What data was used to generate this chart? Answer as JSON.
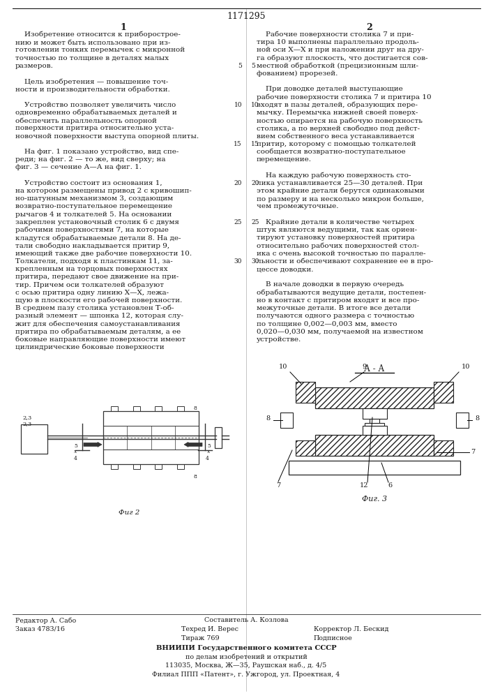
{
  "patent_number": "1171295",
  "col1_header": "1",
  "col2_header": "2",
  "col1_text": [
    "    Изобретение относится к приборострое-",
    "нию и может быть использовано при из-",
    "готовлении тонких перемычек с микронной",
    "точностью по толщине в деталях малых",
    "размеров.",
    "",
    "    Цель изобретения — повышение точ-",
    "ности и производительности обработки.",
    "",
    "    Устройство позволяет увеличить число",
    "одновременно обрабатываемых деталей и",
    "обеспечить параллельность опорной",
    "поверхности притира относительно уста-",
    "новочной поверхности выступа опорной плиты.",
    "",
    "    На фиг. 1 показано устройство, вид спе-",
    "реди; на фиг. 2 — то же, вид сверху; на",
    "фиг. 3 — сечение А—А на фиг. 1.",
    "",
    "    Устройство состоит из основания 1,",
    "на котором размещены привод 2 с кривошип-",
    "но-шатунным механизмом 3, создающим",
    "возвратно-поступательное перемещение",
    "рычагов 4 и толкателей 5. На основании",
    "закреплен установочный столик 6 с двумя",
    "рабочими поверхностями 7, на которые",
    "кладутся обрабатываемые детали 8. На де-",
    "тали свободно накладывается притир 9,",
    "имеющий также две рабочие поверхности 10.",
    "Толкатели, подходя к пластинкам 11, за-",
    "крепленным на торцовых поверхностях",
    "притира, передают свое движение на при-",
    "тир. Причем оси толкателей образуют",
    "с осью притира одну линию Х—Х, лежа-",
    "щую в плоскости его рабочей поверхности.",
    "В среднем пазу столика установлен Т-об-",
    "разный элемент — шпонка 12, которая слу-",
    "жит для обеспечения самоустанавливания",
    "притира по обрабатываемым деталям, а ее",
    "боковые направляющие поверхности имеют",
    "цилиндрические боковые поверхности"
  ],
  "col2_text": [
    "    Рабочие поверхности столика 7 и при-",
    "тира 10 выполнены параллельно продоль-",
    "ной оси Х—Х и при наложении друг на дру-",
    "га образуют плоскость, что достигается сов-",
    "местной обработкой (прецизионным шли-",
    "фованием) прорезей.",
    "",
    "    При доводке деталей выступающие",
    "рабочие поверхности столика 7 и притира 10",
    "входят в пазы деталей, образующих пере-",
    "мычку. Перемычка нижней своей поверх-",
    "ностью опирается на рабочую поверхность",
    "столика, а по верхней свободно под дейст-",
    "вием собственного веса устанавливается",
    "притир, которому с помощью толкателей",
    "сообщается возвратно-поступательное",
    "перемещение.",
    "",
    "    На каждую рабочую поверхность сто-",
    "лика устанавливается 25—30 деталей. При",
    "этом крайние детали берутся одинаковыми",
    "по размеру и на несколько микрон больше,",
    "чем промежуточные.",
    "",
    "    Крайние детали в количестве четырех",
    "штук являются ведущими, так как ориен-",
    "тируют установку поверхностей притира",
    "относительно рабочих поверхностей стол-",
    "ика с очень высокой точностью по паралле-",
    "льности и обеспечивают сохранение ее в про-",
    "цессе доводки.",
    "",
    "    В начале доводки в первую очередь",
    "обрабатываются ведущие детали, постепен-",
    "но в контакт с притиром входят и все про-",
    "межуточные детали. В итоге все детали",
    "получаются одного размера с точностью",
    "по толщине 0,002—0,003 мм, вместо",
    "0,020—0,030 мм, получаемой на известном",
    "устройстве."
  ],
  "line_numbers_left": [
    "5",
    "10",
    "15",
    "20",
    "25",
    "30"
  ],
  "line_numbers_right": [
    "5",
    "10",
    "15",
    "20",
    "25",
    "30"
  ],
  "fig2_label": "Фиг 2",
  "fig3_label": "Фиг. 3",
  "fig3_title": "А - А",
  "footer_left1": "Редактор А. Сабо",
  "footer_left2": "Заказ 4783/16",
  "footer_center1": "Составитель А. Козлова",
  "footer_center2": "Техред И. Верес",
  "footer_center3": "Тираж 769",
  "footer_right1": "Корректор Л. Бескид",
  "footer_right2": "Подписное",
  "footer_vnipi1": "ВНИИПИ Государственного комитета СССР",
  "footer_vnipi2": "по делам изобретений и открытий",
  "footer_vnipi3": "113035, Москва, Ж—35, Раушская наб., д. 4/5",
  "footer_vnipi4": "Филиал ППП «Патент», г. Ужгород, ул. Проектная, 4",
  "bg_color": "#ffffff",
  "text_color": "#1a1a1a"
}
